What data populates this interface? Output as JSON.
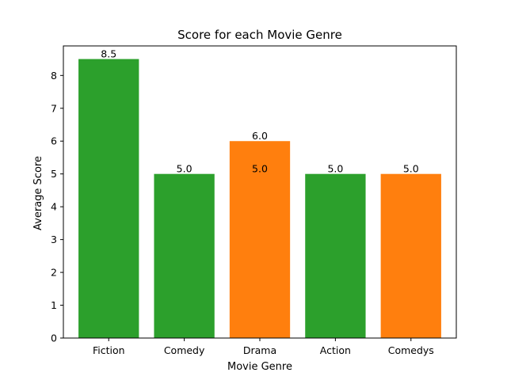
{
  "chart_data": {
    "type": "bar",
    "title": "Score for each Movie Genre",
    "xlabel": "Movie Genre",
    "ylabel": "Average Score",
    "categories": [
      "Fiction",
      "Comedy",
      "Drama",
      "Action",
      "Comedys"
    ],
    "values": [
      8.5,
      5.0,
      6.0,
      5.0,
      5.0
    ],
    "value_labels": [
      "8.5",
      "5.0",
      "6.0",
      "5.0",
      "5.0"
    ],
    "bar_colors": [
      "#2ca02c",
      "#2ca02c",
      "#ff7f0e",
      "#2ca02c",
      "#ff7f0e"
    ],
    "overlay_annotations": [
      {
        "category": "Drama",
        "value": 5.0,
        "label": "5.0"
      }
    ],
    "ylim": [
      0,
      8.9
    ],
    "yticks": [
      0,
      1,
      2,
      3,
      4,
      5,
      6,
      7,
      8
    ],
    "grid": false,
    "legend": "none"
  }
}
